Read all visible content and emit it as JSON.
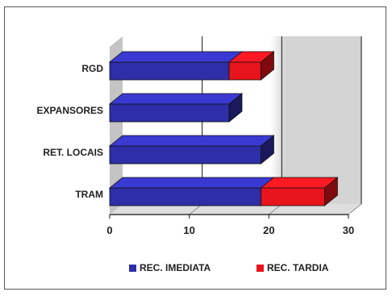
{
  "chart_data": {
    "type": "bar",
    "orientation": "horizontal",
    "stacked": true,
    "style": "3d",
    "categories": [
      "RGD",
      "EXPANSORES",
      "RET. LOCAIS",
      "TRAM"
    ],
    "series": [
      {
        "name": "REC. IMEDIATA",
        "values": [
          15,
          15,
          19,
          19
        ],
        "color": "#2e2ea8"
      },
      {
        "name": "REC. TARDIA",
        "values": [
          4,
          0,
          0,
          8
        ],
        "color": "#e8141b"
      }
    ],
    "xlim": [
      0,
      30
    ],
    "xticks": [
      "0",
      "10",
      "20",
      "30"
    ],
    "grid": "vertical lines at 10 and 20",
    "legend_position": "bottom"
  }
}
